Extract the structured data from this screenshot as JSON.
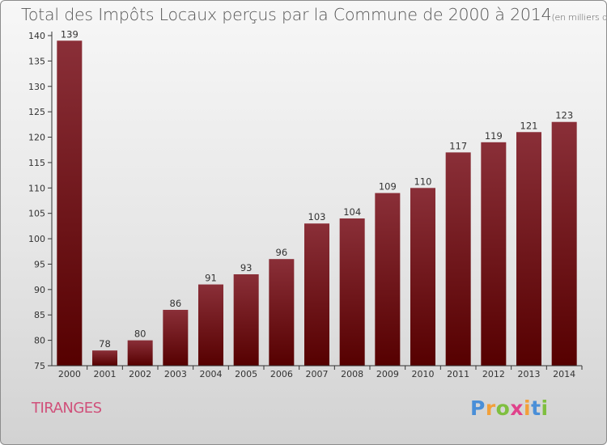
{
  "header": {
    "title": "Total des Impôts Locaux perçus par la Commune de 2000 à 2014",
    "unit": "(en milliers d'€)"
  },
  "footer": {
    "commune": "TIRANGES",
    "logo": "Proxiti"
  },
  "colors": {
    "bar_light": "#8a2f38",
    "bar_dark": "#560000",
    "axis": "#333333",
    "commune_text": "#d0507a"
  },
  "chart_data": {
    "type": "bar",
    "title": "Total des Impôts Locaux perçus par la Commune de 2000 à 2014",
    "unit": "(en milliers d'€)",
    "categories": [
      "2000",
      "2001",
      "2002",
      "2003",
      "2004",
      "2005",
      "2006",
      "2007",
      "2008",
      "2009",
      "2010",
      "2011",
      "2012",
      "2013",
      "2014"
    ],
    "values": [
      139,
      78,
      80,
      86,
      91,
      93,
      96,
      103,
      104,
      109,
      110,
      117,
      119,
      121,
      123
    ],
    "ylim": [
      75,
      140
    ],
    "yticks": [
      75,
      80,
      85,
      90,
      95,
      100,
      105,
      110,
      115,
      120,
      125,
      130,
      135,
      140
    ],
    "grid": false,
    "legend": "none"
  }
}
